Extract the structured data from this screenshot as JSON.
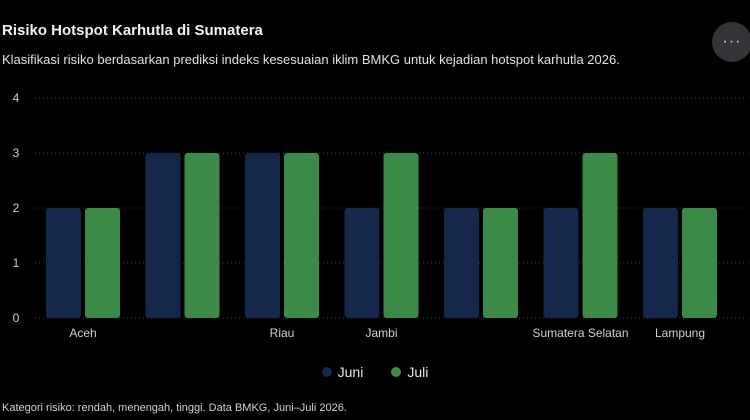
{
  "header": {
    "title": "Risiko Hotspot Karhutla di Sumatera",
    "subtitle": "Klasifikasi risiko berdasarkan prediksi indeks kesesuaian iklim BMKG untuk kejadian hotspot karhutla 2026.",
    "menu_icon": "more-horizontal-icon",
    "menu_label": "···"
  },
  "footnote": "Kategori risiko: rendah, menengah, tinggi. Data BMKG, Juni–Juli 2026.",
  "colors": {
    "juni": "#15274b",
    "juli": "#3c8a48",
    "grid": "#3a3a3a",
    "background": "#000000"
  },
  "chart_data": {
    "type": "bar",
    "categories": [
      "Aceh",
      "",
      "Riau",
      "Jambi",
      "",
      "Sumatera Selatan",
      "Lampung"
    ],
    "series": [
      {
        "name": "Juni",
        "values": [
          2,
          3,
          3,
          2,
          2,
          2,
          2
        ]
      },
      {
        "name": "Juli",
        "values": [
          2,
          3,
          3,
          3,
          2,
          3,
          2
        ]
      }
    ],
    "ylim": [
      0,
      4
    ],
    "yticks": [
      "0",
      "1",
      "2",
      "3",
      "4"
    ],
    "grid": true,
    "legend": "bottom-center"
  }
}
